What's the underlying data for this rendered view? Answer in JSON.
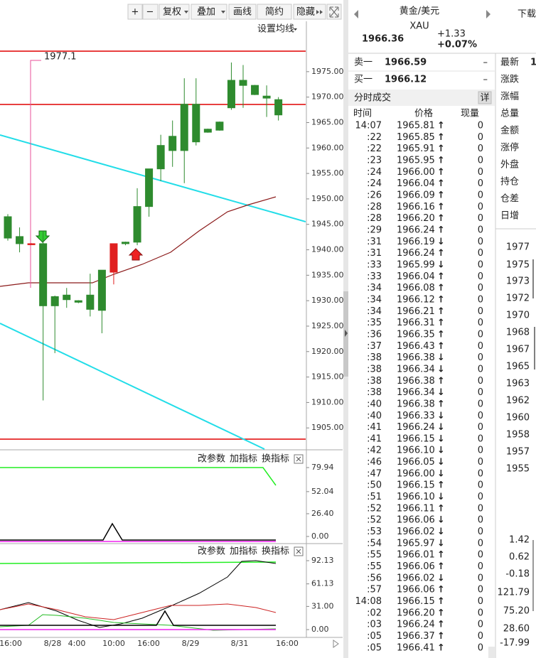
{
  "toolbar": [
    "+",
    "−",
    "复权",
    "叠加",
    "画线",
    "简约",
    "隐藏"
  ],
  "ma_setting": "设置均线",
  "price_chart": {
    "type": "candlestick",
    "annotation": "1977.1",
    "ylim": [
      1901.4,
      1981.4
    ],
    "yticks": [
      {
        "value": 1975,
        "label": "1975.00"
      },
      {
        "value": 1970,
        "label": "1970.00"
      },
      {
        "value": 1965,
        "label": "1965.00"
      },
      {
        "value": 1960,
        "label": "1960.00"
      },
      {
        "value": 1955,
        "label": "1955.00"
      },
      {
        "value": 1950,
        "label": "1950.00"
      },
      {
        "value": 1945,
        "label": "1945.00"
      },
      {
        "value": 1940,
        "label": "1940.00"
      },
      {
        "value": 1935,
        "label": "1935.00"
      },
      {
        "value": 1930,
        "label": "1930.00"
      },
      {
        "value": 1925,
        "label": "1925.00"
      },
      {
        "value": 1920,
        "label": "1920.00"
      },
      {
        "value": 1915,
        "label": "1915.00"
      },
      {
        "value": 1910,
        "label": "1910.00"
      },
      {
        "value": 1905,
        "label": "1905.00"
      }
    ],
    "candles": [
      {
        "open": 1942.3,
        "high": 1947.0,
        "low": 1941.8,
        "close": 1946.5,
        "color": "#2e8b2e"
      },
      {
        "open": 1941.2,
        "high": 1944.4,
        "low": 1939.5,
        "close": 1942.6,
        "color": "#2e8b2e"
      },
      {
        "open": 1941.2,
        "high": 1941.3,
        "low": 1941.1,
        "close": 1941.2,
        "color": "#e02020"
      },
      {
        "open": 1929.0,
        "high": 1943.7,
        "low": 1910.4,
        "close": 1941.2,
        "color": "#2e8b2e"
      },
      {
        "open": 1929.0,
        "high": 1931.0,
        "low": 1919.7,
        "close": 1930.8,
        "color": "#2e8b2e"
      },
      {
        "open": 1930.2,
        "high": 1932.5,
        "low": 1928.6,
        "close": 1931.1,
        "color": "#2e8b2e"
      },
      {
        "open": 1929.7,
        "high": 1930.1,
        "low": 1929.5,
        "close": 1930.0,
        "color": "#2e8b2e"
      },
      {
        "open": 1928.3,
        "high": 1935.3,
        "low": 1926.9,
        "close": 1931.1,
        "color": "#2e8b2e"
      },
      {
        "open": 1928.1,
        "high": 1936.0,
        "low": 1923.6,
        "close": 1936.0,
        "color": "#2e8b2e"
      },
      {
        "open": 1935.6,
        "high": 1941.2,
        "low": 1933.2,
        "close": 1941.2,
        "color": "#e02020"
      },
      {
        "open": 1941.2,
        "high": 1941.6,
        "low": 1940.9,
        "close": 1941.5,
        "color": "#2e8b2e"
      },
      {
        "open": 1941.5,
        "high": 1952.1,
        "low": 1940.9,
        "close": 1948.5,
        "color": "#2e8b2e"
      },
      {
        "open": 1948.5,
        "high": 1955.9,
        "low": 1946.5,
        "close": 1955.9,
        "color": "#2e8b2e"
      },
      {
        "open": 1955.9,
        "high": 1962.6,
        "low": 1953.5,
        "close": 1960.5,
        "color": "#2e8b2e"
      },
      {
        "open": 1959.5,
        "high": 1965.4,
        "low": 1956.3,
        "close": 1962.3,
        "color": "#2e8b2e"
      },
      {
        "open": 1959.5,
        "high": 1973.7,
        "low": 1953.1,
        "close": 1968.6,
        "color": "#2e8b2e"
      },
      {
        "open": 1961.2,
        "high": 1973.7,
        "low": 1960.5,
        "close": 1968.6,
        "color": "#2e8b2e"
      },
      {
        "open": 1963.1,
        "high": 1963.8,
        "low": 1963.0,
        "close": 1963.7,
        "color": "#2e8b2e"
      },
      {
        "open": 1963.5,
        "high": 1965.2,
        "low": 1963.4,
        "close": 1965.1,
        "color": "#2e8b2e"
      },
      {
        "open": 1967.9,
        "high": 1976.8,
        "low": 1967.5,
        "close": 1973.3,
        "color": "#2e8b2e"
      },
      {
        "open": 1972.3,
        "high": 1976.3,
        "low": 1967.9,
        "close": 1973.3,
        "color": "#2e8b2e"
      },
      {
        "open": 1970.5,
        "high": 1972.4,
        "low": 1970.4,
        "close": 1972.3,
        "color": "#2e8b2e"
      },
      {
        "open": 1969.8,
        "high": 1972.3,
        "low": 1966.1,
        "close": 1970.2,
        "color": "#2e8b2e"
      },
      {
        "open": 1966.5,
        "high": 1970.0,
        "low": 1965.4,
        "close": 1969.5,
        "color": "#2e8b2e"
      }
    ]
  },
  "indicator_panels": [
    {
      "buttons": [
        "改参数",
        "加指标",
        "换指标"
      ],
      "ylim": [
        -5.8,
        94.8
      ],
      "yticks": [
        79.94,
        52.04,
        {
          "value": 26.4,
          "label": "26.40"
        },
        {
          "value": 0,
          "label": "0.00"
        }
      ]
    },
    {
      "buttons": [
        "改参数",
        "加指标",
        "换指标"
      ],
      "ylim": [
        -8.5,
        110.2
      ],
      "yticks": [
        92.13,
        61.13,
        {
          "value": 31,
          "label": "31.00"
        },
        {
          "value": 0,
          "label": "0.00"
        }
      ]
    }
  ],
  "x_axis_labels": [
    "16:00",
    "8/28",
    "4:00",
    "10:00",
    "16:00",
    "8/29",
    "8/31",
    "16:00"
  ],
  "quote": {
    "name": "黄金/美元",
    "code": "XAU",
    "price": "1966.36",
    "change": "+1.33",
    "change_pct": "+0.07%",
    "download": "下载"
  },
  "order_book": [
    {
      "label": "卖一",
      "price": "1966.59",
      "volume": "–"
    },
    {
      "label": "买一",
      "price": "1966.12",
      "volume": "–"
    }
  ],
  "trades_title": "分时成交",
  "detail": "详",
  "trades_header": [
    "时间",
    "价格",
    "现量"
  ],
  "arrow_colors": {
    "↑": "#e00000",
    "↓": "#009900"
  },
  "trades": [
    {
      "time": "14:07",
      "price": "1965.81",
      "dir": "↑",
      "volume": 0
    },
    {
      "time": ":22",
      "price": "1965.85",
      "dir": "↑",
      "volume": 0
    },
    {
      "time": ":22",
      "price": "1965.91",
      "dir": "↑",
      "volume": 0
    },
    {
      "time": ":23",
      "price": "1965.95",
      "dir": "↑",
      "volume": 0
    },
    {
      "time": ":24",
      "price": "1966.00",
      "dir": "↑",
      "volume": 0
    },
    {
      "time": ":24",
      "price": "1966.04",
      "dir": "↑",
      "volume": 0
    },
    {
      "time": ":26",
      "price": "1966.09",
      "dir": "↑",
      "volume": 0
    },
    {
      "time": ":28",
      "price": "1966.16",
      "dir": "↑",
      "volume": 0
    },
    {
      "time": ":28",
      "price": "1966.20",
      "dir": "↑",
      "volume": 0
    },
    {
      "time": ":29",
      "price": "1966.24",
      "dir": "↑",
      "volume": 0
    },
    {
      "time": ":31",
      "price": "1966.19",
      "dir": "↓",
      "volume": 0
    },
    {
      "time": ":31",
      "price": "1966.24",
      "dir": "↑",
      "volume": 0
    },
    {
      "time": ":33",
      "price": "1965.99",
      "dir": "↓",
      "volume": 0
    },
    {
      "time": ":33",
      "price": "1966.04",
      "dir": "↑",
      "volume": 0
    },
    {
      "time": ":34",
      "price": "1966.08",
      "dir": "↑",
      "volume": 0
    },
    {
      "time": ":34",
      "price": "1966.12",
      "dir": "↑",
      "volume": 0
    },
    {
      "time": ":34",
      "price": "1966.21",
      "dir": "↑",
      "volume": 0
    },
    {
      "time": ":35",
      "price": "1966.31",
      "dir": "↑",
      "volume": 0
    },
    {
      "time": ":36",
      "price": "1966.35",
      "dir": "↑",
      "volume": 0
    },
    {
      "time": ":37",
      "price": "1966.43",
      "dir": "↑",
      "volume": 0
    },
    {
      "time": ":38",
      "price": "1966.38",
      "dir": "↓",
      "volume": 0
    },
    {
      "time": ":38",
      "price": "1966.34",
      "dir": "↓",
      "volume": 0
    },
    {
      "time": ":38",
      "price": "1966.38",
      "dir": "↑",
      "volume": 0
    },
    {
      "time": ":38",
      "price": "1966.34",
      "dir": "↓",
      "volume": 0
    },
    {
      "time": ":40",
      "price": "1966.38",
      "dir": "↑",
      "volume": 0
    },
    {
      "time": ":40",
      "price": "1966.33",
      "dir": "↓",
      "volume": 0
    },
    {
      "time": ":41",
      "price": "1966.24",
      "dir": "↓",
      "volume": 0
    },
    {
      "time": ":41",
      "price": "1966.15",
      "dir": "↓",
      "volume": 0
    },
    {
      "time": ":42",
      "price": "1966.10",
      "dir": "↓",
      "volume": 0
    },
    {
      "time": ":46",
      "price": "1966.05",
      "dir": "↓",
      "volume": 0
    },
    {
      "time": ":47",
      "price": "1966.00",
      "dir": "↓",
      "volume": 0
    },
    {
      "time": ":50",
      "price": "1966.15",
      "dir": "↑",
      "volume": 0
    },
    {
      "time": ":51",
      "price": "1966.10",
      "dir": "↓",
      "volume": 0
    },
    {
      "time": ":52",
      "price": "1966.11",
      "dir": "↑",
      "volume": 0
    },
    {
      "time": ":52",
      "price": "1966.06",
      "dir": "↓",
      "volume": 0
    },
    {
      "time": ":53",
      "price": "1966.02",
      "dir": "↓",
      "volume": 0
    },
    {
      "time": ":54",
      "price": "1965.97",
      "dir": "↓",
      "volume": 0
    },
    {
      "time": ":55",
      "price": "1966.01",
      "dir": "↑",
      "volume": 0
    },
    {
      "time": ":55",
      "price": "1966.06",
      "dir": "↑",
      "volume": 0
    },
    {
      "time": ":56",
      "price": "1966.02",
      "dir": "↓",
      "volume": 0
    },
    {
      "time": ":57",
      "price": "1966.06",
      "dir": "↑",
      "volume": 0
    },
    {
      "time": "14:08",
      "price": "1966.15",
      "dir": "↑",
      "volume": 0
    },
    {
      "time": ":02",
      "price": "1966.20",
      "dir": "↑",
      "volume": 0
    },
    {
      "time": ":03",
      "price": "1966.24",
      "dir": "↑",
      "volume": 0
    },
    {
      "time": ":05",
      "price": "1966.37",
      "dir": "↑",
      "volume": 0
    },
    {
      "time": ":05",
      "price": "1966.41",
      "dir": "↑",
      "volume": 0
    }
  ],
  "stats": {
    "labels": [
      "最新",
      "涨跌",
      "涨幅",
      "总量",
      "金额",
      "涨停",
      "外盘",
      "持仓",
      "仓差",
      "日增"
    ],
    "latest_value": "1"
  },
  "mini_scale": [
    {
      "label": "1977",
      "color": "#c00000"
    },
    {
      "label": "1975",
      "color": "#c00000"
    },
    {
      "label": "1973",
      "color": "#c00000"
    },
    {
      "label": "1972",
      "color": "#c00000"
    },
    {
      "label": "1970",
      "color": "#c00000"
    },
    {
      "label": "1968",
      "color": "#c00000"
    },
    {
      "label": "1967",
      "color": "#c00000"
    },
    {
      "label": "1965",
      "color": "#222222"
    },
    {
      "label": "1963",
      "color": "#009900"
    },
    {
      "label": "1962",
      "color": "#009900"
    },
    {
      "label": "1960",
      "color": "#009900"
    },
    {
      "label": "1958",
      "color": "#009900"
    },
    {
      "label": "1957",
      "color": "#009900"
    },
    {
      "label": "1955",
      "color": "#009900"
    },
    {
      "label": "1.42",
      "color": "#c00000"
    },
    {
      "label": "0.62",
      "color": "#c00000"
    },
    {
      "label": "-0.18",
      "color": "#009900"
    },
    {
      "label": "121.79",
      "color": "#c00000"
    },
    {
      "label": "75.20",
      "color": "#c00000"
    },
    {
      "label": "28.60",
      "color": "#c00000"
    },
    {
      "label": "-17.99",
      "color": "#009900"
    }
  ]
}
